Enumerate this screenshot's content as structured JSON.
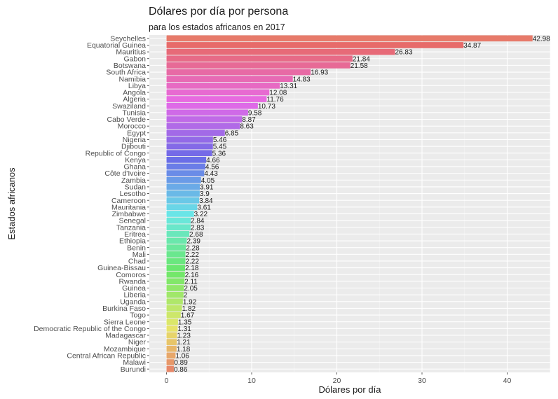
{
  "chart_data": {
    "type": "bar",
    "orientation": "horizontal",
    "title": "Dólares por día por persona",
    "subtitle": "para los estados africanos en 2017",
    "xlabel": "Dólares por día",
    "ylabel": "Estados africanos",
    "xlim": [
      0,
      45
    ],
    "x_ticks": [
      0,
      10,
      20,
      30,
      40
    ],
    "grid": true,
    "legend": "none",
    "categories": [
      "Seychelles",
      "Equatorial Guinea",
      "Mauritius",
      "Gabon",
      "Botswana",
      "South Africa",
      "Namibia",
      "Libya",
      "Angola",
      "Algeria",
      "Swaziland",
      "Tunisia",
      "Cabo Verde",
      "Morocco",
      "Egypt",
      "Nigeria",
      "Djibouti",
      "Republic of Congo",
      "Kenya",
      "Ghana",
      "Côte d'Ivoire",
      "Zambia",
      "Sudan",
      "Lesotho",
      "Cameroon",
      "Mauritania",
      "Zimbabwe",
      "Senegal",
      "Tanzania",
      "Eritrea",
      "Ethiopia",
      "Benin",
      "Mali",
      "Chad",
      "Guinea-Bissau",
      "Comoros",
      "Rwanda",
      "Guinea",
      "Liberia",
      "Uganda",
      "Burkina Faso",
      "Togo",
      "Sierra Leone",
      "Democratic Republic of the Congo",
      "Madagascar",
      "Niger",
      "Mozambique",
      "Central African Republic",
      "Malawi",
      "Burundi"
    ],
    "values": [
      42.98,
      34.87,
      26.83,
      21.84,
      21.58,
      16.93,
      14.83,
      13.31,
      12.08,
      11.76,
      10.73,
      9.58,
      8.87,
      8.63,
      6.85,
      5.46,
      5.45,
      5.36,
      4.66,
      4.56,
      4.43,
      4.05,
      3.91,
      3.9,
      3.84,
      3.61,
      3.22,
      2.84,
      2.83,
      2.68,
      2.39,
      2.28,
      2.22,
      2.22,
      2.18,
      2.16,
      2.11,
      2.05,
      2,
      1.92,
      1.82,
      1.67,
      1.35,
      1.31,
      1.23,
      1.21,
      1.18,
      1.06,
      0.89,
      0.86
    ],
    "value_labels": [
      "42.98",
      "34.87",
      "26.83",
      "21.84",
      "21.58",
      "16.93",
      "14.83",
      "13.31",
      "12.08",
      "11.76",
      "10.73",
      "9.58",
      "8.87",
      "8.63",
      "6.85",
      "5.46",
      "5.45",
      "5.36",
      "4.66",
      "4.56",
      "4.43",
      "4.05",
      "3.91",
      "3.9",
      "3.84",
      "3.61",
      "3.22",
      "2.84",
      "2.83",
      "2.68",
      "2.39",
      "2.28",
      "2.22",
      "2.22",
      "2.18",
      "2.16",
      "2.11",
      "2.05",
      "2",
      "1.92",
      "1.82",
      "1.67",
      "1.35",
      "1.31",
      "1.23",
      "1.21",
      "1.18",
      "1.06",
      "0.89",
      "0.86"
    ]
  }
}
